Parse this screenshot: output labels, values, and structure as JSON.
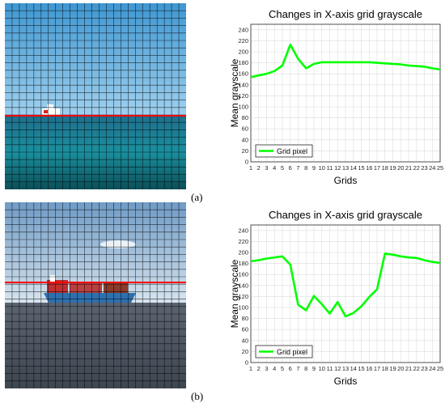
{
  "panels": [
    {
      "label": "(a)",
      "photo_alt": "Cargo ship on sea with grid overlay"
    },
    {
      "label": "(b)",
      "photo_alt": "Container ship at sea with grid overlay"
    }
  ],
  "colors": {
    "series": "#00ff00",
    "line_marker": "#ff0000"
  },
  "chart_data": [
    {
      "type": "line",
      "title": "Changes in X-axis grid grayscale",
      "xlabel": "Grids",
      "ylabel": "Mean grayscale",
      "x": [
        1,
        2,
        3,
        4,
        5,
        6,
        7,
        8,
        9,
        10,
        11,
        12,
        13,
        14,
        15,
        16,
        17,
        18,
        19,
        20,
        21,
        22,
        23,
        24,
        25
      ],
      "series": [
        {
          "name": "Grid pixel",
          "values": [
            154,
            157,
            160,
            165,
            175,
            213,
            187,
            170,
            178,
            181,
            181,
            181,
            181,
            181,
            181,
            181,
            180,
            179,
            178,
            177,
            175,
            174,
            173,
            170,
            168
          ]
        }
      ],
      "xlim": [
        1,
        25
      ],
      "ylim": [
        0,
        250
      ],
      "yticks": [
        0,
        20,
        40,
        60,
        80,
        100,
        120,
        140,
        160,
        180,
        200,
        220,
        240
      ],
      "grid": true,
      "legend": "bottom-left"
    },
    {
      "type": "line",
      "title": "Changes in X-axis grid grayscale",
      "xlabel": "Grids",
      "ylabel": "Mean grayscale",
      "x": [
        1,
        2,
        3,
        4,
        5,
        6,
        7,
        8,
        9,
        10,
        11,
        12,
        13,
        14,
        15,
        16,
        17,
        18,
        19,
        20,
        21,
        22,
        23,
        24,
        25
      ],
      "series": [
        {
          "name": "Grid pixel",
          "values": [
            184,
            186,
            189,
            191,
            193,
            178,
            105,
            95,
            121,
            106,
            89,
            110,
            84,
            90,
            102,
            119,
            133,
            198,
            196,
            193,
            191,
            190,
            186,
            183,
            181
          ]
        }
      ],
      "xlim": [
        1,
        25
      ],
      "ylim": [
        0,
        250
      ],
      "yticks": [
        0,
        20,
        40,
        60,
        80,
        100,
        120,
        140,
        160,
        180,
        200,
        220,
        240
      ],
      "grid": true,
      "legend": "bottom-left"
    }
  ]
}
